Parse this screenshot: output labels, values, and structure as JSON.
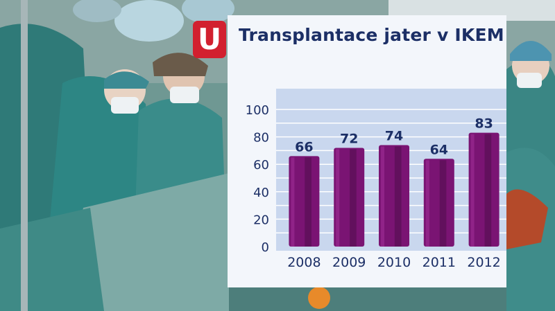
{
  "brand": {
    "logo_text": "U",
    "logo_color": "#d2202f"
  },
  "colors": {
    "bar": "#7a1473",
    "bar_highlight": "#9a2a92",
    "bar_shadow": "#5c0f57",
    "plot_bg": "#c9d7ee",
    "grid": "#ffffff",
    "text": "#1c2f66"
  },
  "chart_data": {
    "type": "bar",
    "title": "Transplantace jater v IKEM",
    "categories": [
      "2008",
      "2009",
      "2010",
      "2011",
      "2012"
    ],
    "values": [
      66,
      72,
      74,
      64,
      83
    ],
    "data_labels": [
      "66",
      "72",
      "74",
      "64",
      "83"
    ],
    "ylim": [
      0,
      100
    ],
    "yticks": [
      0,
      20,
      40,
      60,
      80,
      100
    ],
    "ytick_labels": [
      "0",
      "20",
      "40",
      "60",
      "80",
      "100"
    ],
    "grid": true,
    "xlabel": "",
    "ylabel": ""
  }
}
